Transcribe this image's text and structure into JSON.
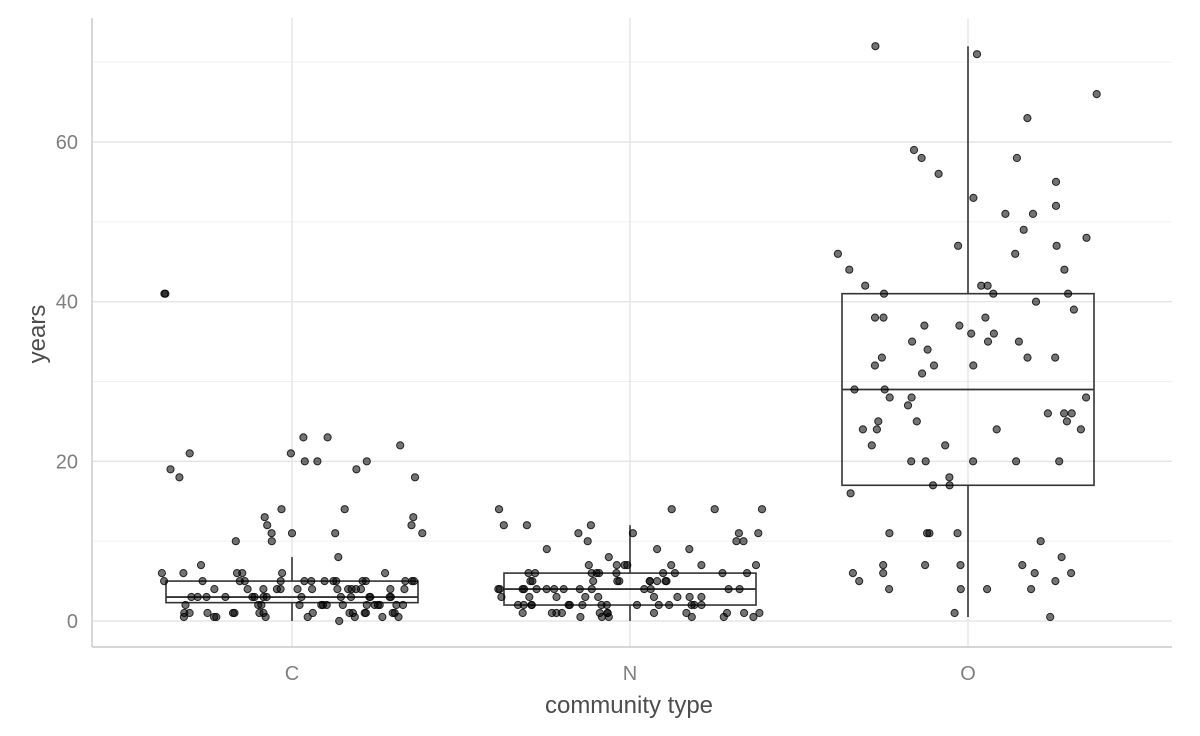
{
  "chart_data": {
    "type": "boxplot",
    "title": "",
    "xlabel": "community type",
    "ylabel": "years",
    "ylim": [
      -3.3,
      75.2
    ],
    "y_major_ticks": [
      0,
      20,
      40,
      60
    ],
    "y_minor_ticks": [
      10,
      30,
      50,
      70
    ],
    "y_tick_labels": [
      "0",
      "20",
      "40",
      "60"
    ],
    "categories": [
      "C",
      "N",
      "O"
    ],
    "boxes": [
      {
        "category": "C",
        "q1": 2.3,
        "median": 3.0,
        "q3": 5.0,
        "whisker_low": 0.0,
        "whisker_high": 8.0
      },
      {
        "category": "N",
        "q1": 2.0,
        "median": 4.0,
        "q3": 6.0,
        "whisker_low": 0.0,
        "whisker_high": 12.0
      },
      {
        "category": "O",
        "q1": 17.0,
        "median": 29.0,
        "q3": 41.0,
        "whisker_low": 0.5,
        "whisker_high": 72.0
      }
    ],
    "points": [
      {
        "category": "C",
        "y": [
          41,
          41,
          23,
          23,
          22,
          21,
          21,
          20,
          20,
          20,
          19,
          19,
          18,
          18,
          14,
          14,
          13,
          13,
          12,
          12,
          11,
          11,
          11,
          11,
          10,
          10,
          8,
          7,
          6,
          6,
          6,
          6,
          6,
          6,
          5,
          5,
          5,
          5,
          5,
          5,
          5,
          5,
          5,
          5,
          5,
          5,
          5,
          5,
          5,
          4,
          4,
          4,
          4,
          4,
          4,
          4,
          4,
          4,
          4,
          4,
          4,
          4,
          4,
          3,
          3,
          3,
          3,
          3,
          3,
          3,
          3,
          3,
          3,
          3,
          3,
          3,
          3,
          3,
          2,
          2,
          2,
          2,
          2,
          2,
          2,
          2,
          2,
          2,
          2,
          2,
          2,
          2,
          1,
          1,
          1,
          1,
          1,
          1,
          1,
          1,
          1,
          1,
          1,
          1,
          1,
          1,
          0.5,
          0.5,
          0.5,
          0.5,
          0.5,
          0.5,
          0.5,
          0.5,
          0
        ]
      },
      {
        "category": "N",
        "y": [
          14,
          14,
          14,
          14,
          12,
          12,
          12,
          11,
          11,
          11,
          11,
          10,
          10,
          10,
          9,
          9,
          9,
          8,
          7,
          7,
          7,
          7,
          7,
          7,
          7,
          6,
          6,
          6,
          6,
          6,
          6,
          6,
          6,
          6,
          6,
          5,
          5,
          5,
          5,
          5,
          5,
          5,
          5,
          5,
          5,
          4,
          4,
          4,
          4,
          4,
          4,
          4,
          4,
          4,
          4,
          4,
          4,
          4,
          4,
          3,
          3,
          3,
          3,
          3,
          3,
          3,
          3,
          3,
          2,
          2,
          2,
          2,
          2,
          2,
          2,
          2,
          2,
          2,
          2,
          2,
          2,
          2,
          2,
          1,
          1,
          1,
          1,
          1,
          1,
          1,
          1,
          1,
          1,
          1,
          1,
          0.5,
          0.5,
          0.5,
          0.5,
          0.5,
          0.5
        ]
      },
      {
        "category": "O",
        "y": [
          72,
          71,
          66,
          63,
          59,
          58,
          58,
          56,
          55,
          53,
          52,
          51,
          51,
          49,
          48,
          47,
          47,
          46,
          46,
          44,
          44,
          42,
          42,
          42,
          41,
          41,
          41,
          40,
          39,
          38,
          38,
          38,
          37,
          37,
          36,
          36,
          35,
          35,
          35,
          34,
          33,
          33,
          33,
          32,
          32,
          32,
          31,
          29,
          29,
          28,
          28,
          28,
          27,
          26,
          26,
          26,
          25,
          25,
          25,
          24,
          24,
          24,
          24,
          22,
          22,
          20,
          20,
          20,
          20,
          20,
          18,
          17,
          17,
          16,
          11,
          11,
          11,
          11,
          10,
          8,
          7,
          7,
          7,
          7,
          6,
          6,
          6,
          6,
          5,
          5,
          4,
          4,
          4,
          4,
          1,
          0.5
        ]
      }
    ]
  }
}
